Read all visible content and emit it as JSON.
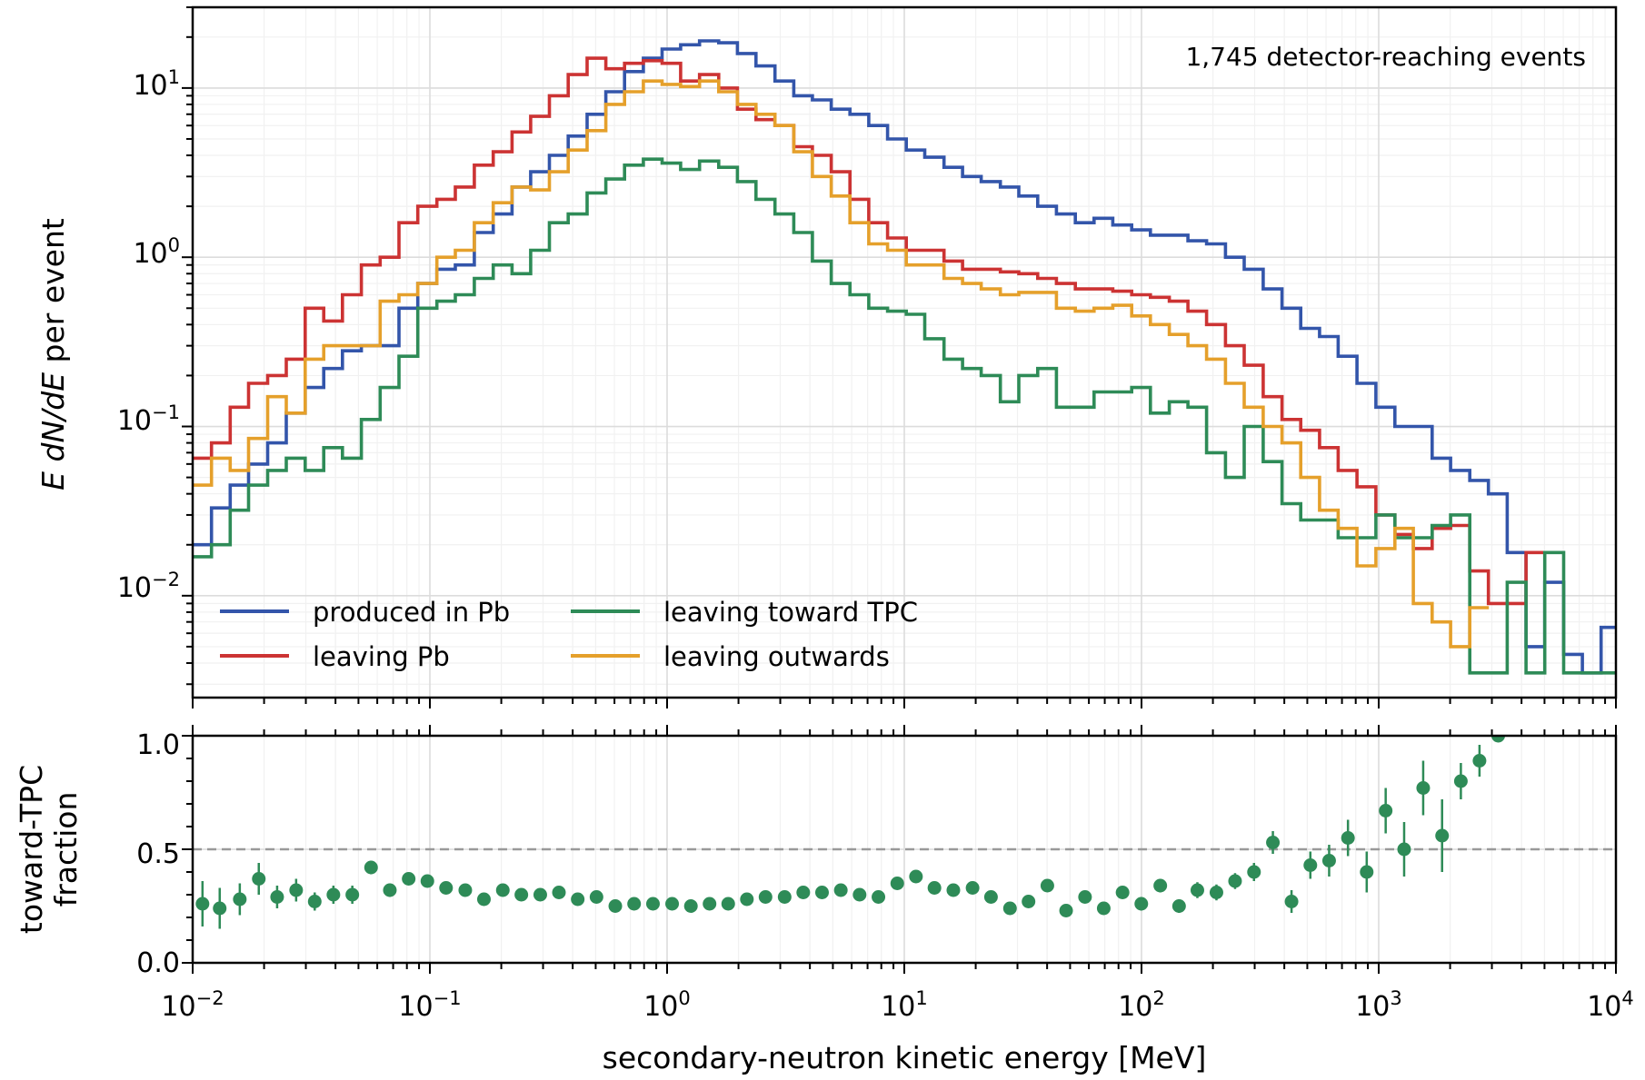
{
  "chart_data": [
    {
      "type": "line",
      "drawstyle": "steps",
      "xscale": "log",
      "yscale": "log",
      "xlim": [
        0.01,
        10000
      ],
      "ylim": [
        0.0025,
        30
      ],
      "ylabel_math": "E dN/dE",
      "ylabel_rest": " per event",
      "annotation": "1,745 detector-reaching events",
      "yticks": [
        {
          "base": "10",
          "exp": "1",
          "value": 10
        },
        {
          "base": "10",
          "exp": "0",
          "value": 1
        },
        {
          "base": "10",
          "exp": "−1",
          "value": 0.1
        },
        {
          "base": "10",
          "exp": "−2",
          "value": 0.01
        }
      ],
      "grid": true,
      "legend_position": "lower-left",
      "series": [
        {
          "name": "produced in Pb",
          "color": "#3355aa",
          "x_start": [
            0.01,
            0.012,
            0.0144,
            0.0172,
            0.0207,
            0.0248,
            0.0298,
            0.0357,
            0.0428,
            0.0514,
            0.0617,
            0.0741,
            0.0889,
            0.107,
            0.128,
            0.154,
            0.185,
            0.222,
            0.266,
            0.319,
            0.383,
            0.46,
            0.552,
            0.662,
            0.794,
            0.953,
            1.14,
            1.37,
            1.65,
            1.98,
            2.37,
            2.85,
            3.42,
            4.1,
            4.92,
            5.9,
            7.08,
            8.5,
            10.2,
            12.2,
            14.7,
            17.6,
            21.1,
            25.4,
            30.4,
            36.5,
            43.8,
            52.6,
            63.1,
            75.7,
            90.9,
            109,
            131,
            157,
            188,
            226,
            271,
            326,
            391,
            469,
            563,
            675,
            810,
            973,
            1170,
            1400,
            1680,
            2010,
            2420,
            2900,
            3480,
            4180,
            5010,
            6020,
            7220,
            8660
          ],
          "y": [
            0.02,
            0.033,
            0.045,
            0.06,
            0.08,
            0.12,
            0.17,
            0.22,
            0.28,
            0.3,
            0.3,
            0.5,
            0.7,
            0.85,
            0.9,
            1.4,
            1.8,
            2.6,
            3.2,
            4,
            5.2,
            7,
            9.5,
            12.5,
            15,
            17,
            18,
            19,
            18.5,
            16,
            13.5,
            11,
            9,
            8.5,
            7.5,
            7,
            6,
            5,
            4.3,
            3.9,
            3.4,
            3,
            2.8,
            2.6,
            2.3,
            2,
            1.8,
            1.6,
            1.7,
            1.55,
            1.45,
            1.35,
            1.35,
            1.25,
            1.2,
            1.0,
            0.85,
            0.65,
            0.5,
            0.38,
            0.34,
            0.26,
            0.18,
            0.13,
            0.1,
            0.1,
            0.065,
            0.055,
            0.048,
            0.04,
            0.018,
            0.005,
            0.012,
            0.0045,
            0.0035,
            0.0065
          ]
        },
        {
          "name": "leaving Pb",
          "color": "#cc3333",
          "x_start": [
            0.01,
            0.012,
            0.0144,
            0.0172,
            0.0207,
            0.0248,
            0.0298,
            0.0357,
            0.0428,
            0.0514,
            0.0617,
            0.0741,
            0.0889,
            0.107,
            0.128,
            0.154,
            0.185,
            0.222,
            0.266,
            0.319,
            0.383,
            0.46,
            0.552,
            0.662,
            0.794,
            0.953,
            1.14,
            1.37,
            1.65,
            1.98,
            2.37,
            2.85,
            3.42,
            4.1,
            4.92,
            5.9,
            7.08,
            8.5,
            10.2,
            12.2,
            14.7,
            17.6,
            21.1,
            25.4,
            30.4,
            36.5,
            43.8,
            52.6,
            63.1,
            75.7,
            90.9,
            109,
            131,
            157,
            188,
            226,
            271,
            326,
            391,
            469,
            563,
            675,
            810,
            973,
            1170,
            1400,
            1680,
            2010,
            2420,
            2900,
            3480,
            4180
          ],
          "y": [
            0.065,
            0.08,
            0.13,
            0.18,
            0.2,
            0.25,
            0.5,
            0.42,
            0.6,
            0.9,
            1.0,
            1.6,
            2.0,
            2.2,
            2.6,
            3.5,
            4.2,
            5.5,
            6.8,
            9,
            12,
            15,
            13,
            14,
            14.5,
            14,
            11,
            12,
            10,
            7.5,
            6.5,
            6,
            4.5,
            4,
            3.2,
            2.2,
            1.6,
            1.3,
            1.1,
            1.1,
            0.95,
            0.85,
            0.85,
            0.82,
            0.8,
            0.75,
            0.7,
            0.65,
            0.65,
            0.63,
            0.6,
            0.58,
            0.55,
            0.48,
            0.4,
            0.3,
            0.23,
            0.15,
            0.11,
            0.095,
            0.075,
            0.055,
            0.044,
            0.03,
            0.023,
            0.019,
            0.025,
            0.026,
            0.014,
            0.009,
            0.009,
            0.018
          ]
        },
        {
          "name": "leaving toward TPC",
          "color": "#2e8b57",
          "x_start": [
            0.01,
            0.012,
            0.0144,
            0.0172,
            0.0207,
            0.0248,
            0.0298,
            0.0357,
            0.0428,
            0.0514,
            0.0617,
            0.0741,
            0.0889,
            0.107,
            0.128,
            0.154,
            0.185,
            0.222,
            0.266,
            0.319,
            0.383,
            0.46,
            0.552,
            0.662,
            0.794,
            0.953,
            1.14,
            1.37,
            1.65,
            1.98,
            2.37,
            2.85,
            3.42,
            4.1,
            4.92,
            5.9,
            7.08,
            8.5,
            10.2,
            12.2,
            14.7,
            17.6,
            21.1,
            25.4,
            30.4,
            36.5,
            43.8,
            52.6,
            63.1,
            75.7,
            90.9,
            109,
            131,
            157,
            188,
            226,
            271,
            326,
            391,
            469,
            563,
            675,
            810,
            973,
            1170,
            1400,
            1680,
            2010,
            2420,
            2900,
            3480,
            4180,
            5010,
            6020,
            7220,
            8660
          ],
          "y": [
            0.017,
            0.02,
            0.032,
            0.045,
            0.055,
            0.065,
            0.055,
            0.075,
            0.065,
            0.11,
            0.17,
            0.26,
            0.5,
            0.55,
            0.6,
            0.75,
            0.9,
            0.8,
            1.1,
            1.6,
            1.8,
            2.4,
            2.9,
            3.5,
            3.8,
            3.6,
            3.3,
            3.7,
            3.4,
            2.8,
            2.2,
            1.8,
            1.4,
            0.95,
            0.7,
            0.6,
            0.5,
            0.48,
            0.46,
            0.33,
            0.25,
            0.22,
            0.2,
            0.14,
            0.2,
            0.22,
            0.13,
            0.13,
            0.16,
            0.16,
            0.17,
            0.12,
            0.14,
            0.13,
            0.07,
            0.05,
            0.1,
            0.062,
            0.035,
            0.028,
            0.028,
            0.022,
            0.022,
            0.03,
            0.022,
            0.022,
            0.026,
            0.03,
            0.0035,
            0.0035,
            0.012,
            0.0035,
            0.018,
            0.0035,
            0.0035,
            0.0035
          ]
        },
        {
          "name": "leaving outwards",
          "color": "#e5a02b",
          "x_start": [
            0.01,
            0.012,
            0.0144,
            0.0172,
            0.0207,
            0.0248,
            0.0298,
            0.0357,
            0.0428,
            0.0514,
            0.0617,
            0.0741,
            0.0889,
            0.107,
            0.128,
            0.154,
            0.185,
            0.222,
            0.266,
            0.319,
            0.383,
            0.46,
            0.552,
            0.662,
            0.794,
            0.953,
            1.14,
            1.37,
            1.65,
            1.98,
            2.37,
            2.85,
            3.42,
            4.1,
            4.92,
            5.9,
            7.08,
            8.5,
            10.2,
            12.2,
            14.7,
            17.6,
            21.1,
            25.4,
            30.4,
            36.5,
            43.8,
            52.6,
            63.1,
            75.7,
            90.9,
            109,
            131,
            157,
            188,
            226,
            271,
            326,
            391,
            469,
            563,
            675,
            810,
            973,
            1170,
            1400,
            1680,
            2010,
            2420
          ],
          "y": [
            0.045,
            0.065,
            0.055,
            0.085,
            0.15,
            0.12,
            0.25,
            0.3,
            0.3,
            0.3,
            0.55,
            0.6,
            0.7,
            1.0,
            1.1,
            1.6,
            2.1,
            2.6,
            2.5,
            3.2,
            4.3,
            5.6,
            8,
            9.5,
            11,
            10.5,
            10.2,
            11,
            9.5,
            8,
            7,
            6,
            4.2,
            3,
            2.3,
            1.6,
            1.2,
            1.1,
            0.9,
            0.9,
            0.75,
            0.7,
            0.65,
            0.6,
            0.62,
            0.62,
            0.5,
            0.48,
            0.5,
            0.52,
            0.45,
            0.4,
            0.35,
            0.3,
            0.25,
            0.18,
            0.13,
            0.1,
            0.08,
            0.05,
            0.032,
            0.025,
            0.015,
            0.019,
            0.025,
            0.009,
            0.007,
            0.005,
            0.0085
          ]
        }
      ]
    },
    {
      "type": "scatter",
      "xscale": "log",
      "xlim": [
        0.01,
        10000
      ],
      "ylim": [
        0,
        1.0
      ],
      "xlabel": "secondary-neutron kinetic energy [MeV]",
      "ylabel_lines": [
        "toward-TPC",
        "fraction"
      ],
      "yticks": [
        "0.0",
        "0.5",
        "1.0"
      ],
      "xticks": [
        {
          "base": "10",
          "exp": "−2",
          "value": 0.01
        },
        {
          "base": "10",
          "exp": "−1",
          "value": 0.1
        },
        {
          "base": "10",
          "exp": "0",
          "value": 1
        },
        {
          "base": "10",
          "exp": "1",
          "value": 10
        },
        {
          "base": "10",
          "exp": "2",
          "value": 100
        },
        {
          "base": "10",
          "exp": "3",
          "value": 1000
        },
        {
          "base": "10",
          "exp": "4",
          "value": 10000
        }
      ],
      "reference_line": 0.5,
      "color": "#2e8b57",
      "points": [
        {
          "x": 0.011,
          "y": 0.26,
          "err": 0.1
        },
        {
          "x": 0.013,
          "y": 0.24,
          "err": 0.09
        },
        {
          "x": 0.0158,
          "y": 0.28,
          "err": 0.07
        },
        {
          "x": 0.019,
          "y": 0.37,
          "err": 0.07
        },
        {
          "x": 0.0227,
          "y": 0.29,
          "err": 0.05
        },
        {
          "x": 0.0273,
          "y": 0.32,
          "err": 0.05
        },
        {
          "x": 0.0327,
          "y": 0.27,
          "err": 0.04
        },
        {
          "x": 0.0392,
          "y": 0.3,
          "err": 0.04
        },
        {
          "x": 0.0471,
          "y": 0.3,
          "err": 0.04
        },
        {
          "x": 0.0565,
          "y": 0.42,
          "err": 0.03
        },
        {
          "x": 0.0678,
          "y": 0.32,
          "err": 0.03
        },
        {
          "x": 0.0814,
          "y": 0.37,
          "err": 0.025
        },
        {
          "x": 0.0976,
          "y": 0.36,
          "err": 0.02
        },
        {
          "x": 0.117,
          "y": 0.33,
          "err": 0.02
        },
        {
          "x": 0.141,
          "y": 0.32,
          "err": 0.02
        },
        {
          "x": 0.169,
          "y": 0.28,
          "err": 0.02
        },
        {
          "x": 0.203,
          "y": 0.32,
          "err": 0.02
        },
        {
          "x": 0.243,
          "y": 0.3,
          "err": 0.015
        },
        {
          "x": 0.292,
          "y": 0.3,
          "err": 0.015
        },
        {
          "x": 0.35,
          "y": 0.31,
          "err": 0.015
        },
        {
          "x": 0.42,
          "y": 0.28,
          "err": 0.015
        },
        {
          "x": 0.504,
          "y": 0.29,
          "err": 0.015
        },
        {
          "x": 0.605,
          "y": 0.25,
          "err": 0.012
        },
        {
          "x": 0.726,
          "y": 0.26,
          "err": 0.012
        },
        {
          "x": 0.872,
          "y": 0.26,
          "err": 0.012
        },
        {
          "x": 1.05,
          "y": 0.26,
          "err": 0.012
        },
        {
          "x": 1.26,
          "y": 0.25,
          "err": 0.012
        },
        {
          "x": 1.51,
          "y": 0.26,
          "err": 0.012
        },
        {
          "x": 1.81,
          "y": 0.26,
          "err": 0.012
        },
        {
          "x": 2.17,
          "y": 0.28,
          "err": 0.012
        },
        {
          "x": 2.6,
          "y": 0.29,
          "err": 0.012
        },
        {
          "x": 3.13,
          "y": 0.29,
          "err": 0.015
        },
        {
          "x": 3.75,
          "y": 0.31,
          "err": 0.015
        },
        {
          "x": 4.5,
          "y": 0.31,
          "err": 0.015
        },
        {
          "x": 5.4,
          "y": 0.32,
          "err": 0.015
        },
        {
          "x": 6.48,
          "y": 0.3,
          "err": 0.02
        },
        {
          "x": 7.78,
          "y": 0.29,
          "err": 0.02
        },
        {
          "x": 9.34,
          "y": 0.35,
          "err": 0.02
        },
        {
          "x": 11.2,
          "y": 0.38,
          "err": 0.02
        },
        {
          "x": 13.4,
          "y": 0.33,
          "err": 0.02
        },
        {
          "x": 16.1,
          "y": 0.32,
          "err": 0.02
        },
        {
          "x": 19.4,
          "y": 0.33,
          "err": 0.025
        },
        {
          "x": 23.2,
          "y": 0.29,
          "err": 0.025
        },
        {
          "x": 27.9,
          "y": 0.24,
          "err": 0.025
        },
        {
          "x": 33.4,
          "y": 0.27,
          "err": 0.025
        },
        {
          "x": 40.1,
          "y": 0.34,
          "err": 0.025
        },
        {
          "x": 48.1,
          "y": 0.23,
          "err": 0.025
        },
        {
          "x": 57.8,
          "y": 0.29,
          "err": 0.025
        },
        {
          "x": 69.3,
          "y": 0.24,
          "err": 0.025
        },
        {
          "x": 83.2,
          "y": 0.31,
          "err": 0.025
        },
        {
          "x": 99.8,
          "y": 0.26,
          "err": 0.03
        },
        {
          "x": 120,
          "y": 0.34,
          "err": 0.03
        },
        {
          "x": 144,
          "y": 0.25,
          "err": 0.03
        },
        {
          "x": 172,
          "y": 0.32,
          "err": 0.035
        },
        {
          "x": 207,
          "y": 0.31,
          "err": 0.035
        },
        {
          "x": 248,
          "y": 0.36,
          "err": 0.035
        },
        {
          "x": 298,
          "y": 0.4,
          "err": 0.04
        },
        {
          "x": 358,
          "y": 0.53,
          "err": 0.05
        },
        {
          "x": 429,
          "y": 0.27,
          "err": 0.05
        },
        {
          "x": 515,
          "y": 0.43,
          "err": 0.06
        },
        {
          "x": 618,
          "y": 0.45,
          "err": 0.07
        },
        {
          "x": 742,
          "y": 0.55,
          "err": 0.08
        },
        {
          "x": 890,
          "y": 0.4,
          "err": 0.09
        },
        {
          "x": 1070,
          "y": 0.67,
          "err": 0.1
        },
        {
          "x": 1280,
          "y": 0.5,
          "err": 0.12
        },
        {
          "x": 1540,
          "y": 0.77,
          "err": 0.12
        },
        {
          "x": 1850,
          "y": 0.56,
          "err": 0.16
        },
        {
          "x": 2220,
          "y": 0.8,
          "err": 0.08
        },
        {
          "x": 2660,
          "y": 0.89,
          "err": 0.07
        },
        {
          "x": 3190,
          "y": 1.0,
          "err": 0.02
        }
      ]
    }
  ]
}
